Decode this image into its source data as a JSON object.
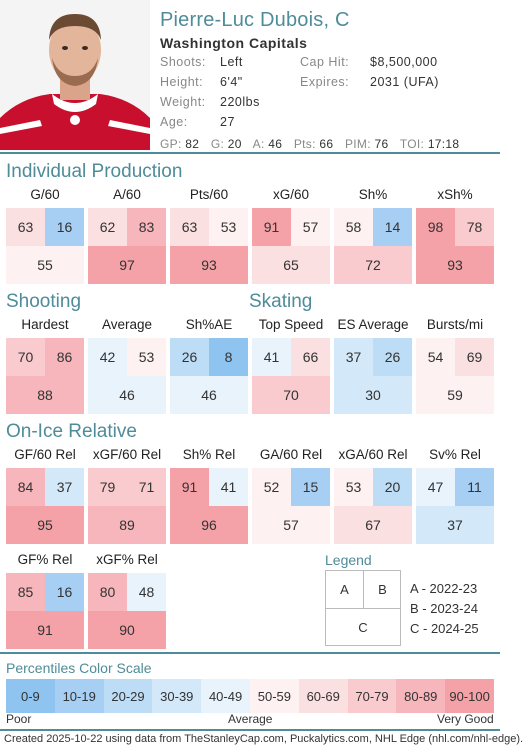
{
  "player": {
    "name": "Pierre-Luc Dubois, C",
    "team": "Washington Capitals",
    "shoots_label": "Shoots:",
    "shoots": "Left",
    "height_label": "Height:",
    "height": "6'4\"",
    "weight_label": "Weight:",
    "weight": "220lbs",
    "age_label": "Age:",
    "age": "27",
    "cap_label": "Cap Hit:",
    "cap": "$8,500,000",
    "expires_label": "Expires:",
    "expires": "2031 (UFA)",
    "stats": [
      {
        "k": "GP:",
        "v": "82"
      },
      {
        "k": "G:",
        "v": "20"
      },
      {
        "k": "A:",
        "v": "46"
      },
      {
        "k": "Pts:",
        "v": "66"
      },
      {
        "k": "PIM:",
        "v": "76"
      },
      {
        "k": "TOI:",
        "v": "17:18"
      }
    ]
  },
  "sections": {
    "production": "Individual Production",
    "shooting": "Shooting",
    "skating": "Skating",
    "onice": "On-Ice Relative"
  },
  "metrics": {
    "g60": {
      "title": "G/60",
      "a": 63,
      "b": 16,
      "c": 55
    },
    "a60": {
      "title": "A/60",
      "a": 62,
      "b": 83,
      "c": 97
    },
    "pts60": {
      "title": "Pts/60",
      "a": 63,
      "b": 53,
      "c": 93
    },
    "xg60": {
      "title": "xG/60",
      "a": 91,
      "b": 57,
      "c": 65
    },
    "sh": {
      "title": "Sh%",
      "a": 58,
      "b": 14,
      "c": 72
    },
    "xsh": {
      "title": "xSh%",
      "a": 98,
      "b": 78,
      "c": 93
    },
    "hardest": {
      "title": "Hardest",
      "a": 70,
      "b": 86,
      "c": 88
    },
    "average": {
      "title": "Average",
      "a": 42,
      "b": 53,
      "c": 46
    },
    "shae": {
      "title": "Sh%AE",
      "a": 26,
      "b": 8,
      "c": 46
    },
    "topspeed": {
      "title": "Top Speed",
      "a": 41,
      "b": 66,
      "c": 70
    },
    "esavg": {
      "title": "ES Average",
      "a": 37,
      "b": 26,
      "c": 30
    },
    "bursts": {
      "title": "Bursts/mi",
      "a": 54,
      "b": 69,
      "c": 59
    },
    "gf60": {
      "title": "GF/60 Rel",
      "a": 84,
      "b": 37,
      "c": 95
    },
    "xgf60": {
      "title": "xGF/60 Rel",
      "a": 79,
      "b": 71,
      "c": 89
    },
    "shrel": {
      "title": "Sh% Rel",
      "a": 91,
      "b": 41,
      "c": 96
    },
    "ga60": {
      "title": "GA/60 Rel",
      "a": 52,
      "b": 15,
      "c": 57
    },
    "xga60": {
      "title": "xGA/60 Rel",
      "a": 53,
      "b": 20,
      "c": 67
    },
    "svrel": {
      "title": "Sv% Rel",
      "a": 47,
      "b": 11,
      "c": 37
    },
    "gfpct": {
      "title": "GF% Rel",
      "a": 85,
      "b": 16,
      "c": 91
    },
    "xgfpct": {
      "title": "xGF% Rel",
      "a": 80,
      "b": 48,
      "c": 90
    }
  },
  "legend": {
    "title": "Legend",
    "cell_a": "A",
    "cell_b": "B",
    "cell_c": "C",
    "item_a": "A - 2022-23",
    "item_b": "B - 2023-24",
    "item_c": "C - 2024-25"
  },
  "scale": {
    "title": "Percentiles Color Scale",
    "bins": [
      {
        "label": "0-9",
        "color": "#8fc3f0"
      },
      {
        "label": "10-19",
        "color": "#a6cff3"
      },
      {
        "label": "20-29",
        "color": "#bddcf6"
      },
      {
        "label": "30-39",
        "color": "#d3e8f9"
      },
      {
        "label": "40-49",
        "color": "#e8f3fc"
      },
      {
        "label": "50-59",
        "color": "#fdf1f2"
      },
      {
        "label": "60-69",
        "color": "#fbe0e2"
      },
      {
        "label": "70-79",
        "color": "#f9cbcf"
      },
      {
        "label": "80-89",
        "color": "#f6b6bb"
      },
      {
        "label": "90-100",
        "color": "#f4a2a8"
      }
    ],
    "poor": "Poor",
    "average": "Average",
    "very_good": "Very Good"
  },
  "footer": "Created 2025-10-22 using data from TheStanleyCap.com, Puckalytics.com, NHL Edge (nhl.com/nhl-edge)."
}
